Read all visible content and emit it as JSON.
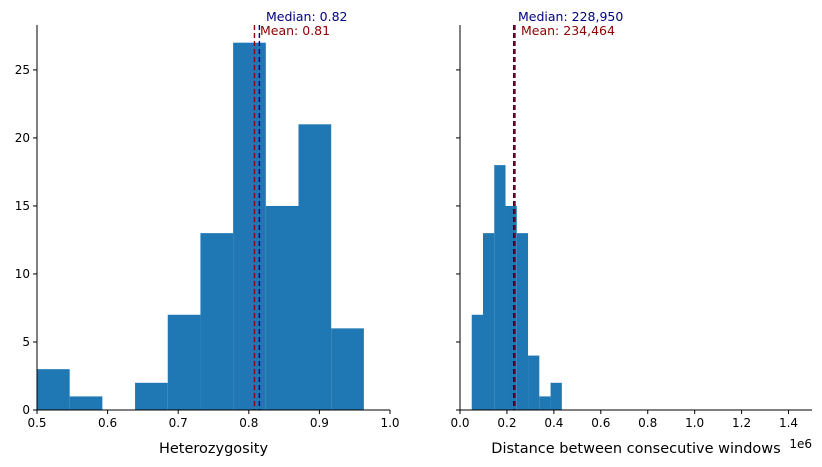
{
  "chart_data": [
    {
      "type": "histogram",
      "xlabel": "Heterozygosity",
      "ylabel": "",
      "xlim": [
        0.5,
        1.0
      ],
      "ylim": [
        0,
        28.3
      ],
      "xticks": [
        0.5,
        0.6,
        0.7,
        0.8,
        0.9,
        1.0
      ],
      "xtick_labels": [
        "0.5",
        "0.6",
        "0.7",
        "0.8",
        "0.9",
        "1.0"
      ],
      "yticks": [
        0,
        5,
        10,
        15,
        20,
        25
      ],
      "ytick_labels": [
        "0",
        "5",
        "10",
        "15",
        "20",
        "25"
      ],
      "bin_start": 0.5,
      "bin_width": 0.0463,
      "counts": [
        3,
        1,
        0,
        2,
        7,
        13,
        27,
        15,
        21,
        6
      ],
      "lines": [
        {
          "name": "median",
          "value": 0.815,
          "label": "Median: 0.82",
          "color": "#000080"
        },
        {
          "name": "mean",
          "value": 0.808,
          "label": "Mean: 0.81",
          "color": "#8b0000"
        }
      ]
    },
    {
      "type": "histogram",
      "xlabel": "Distance between consecutive windows",
      "ylabel": "",
      "offset_label": "1e6",
      "xlim": [
        0,
        1500000
      ],
      "ylim": [
        0,
        28.3
      ],
      "xticks": [
        0,
        200000,
        400000,
        600000,
        800000,
        1000000,
        1200000,
        1400000
      ],
      "xtick_labels": [
        "0.0",
        "0.2",
        "0.4",
        "0.6",
        "0.8",
        "1.0",
        "1.2",
        "1.4"
      ],
      "yticks": [
        0,
        5,
        10,
        15,
        20,
        25
      ],
      "bin_start": 50000,
      "bin_width": 48000,
      "counts": [
        7,
        13,
        18,
        15,
        13,
        4,
        1,
        2
      ],
      "lines": [
        {
          "name": "median",
          "value": 228950,
          "label": "Median: 228,950",
          "color": "#000080"
        },
        {
          "name": "mean",
          "value": 234464,
          "label": "Mean: 234,464",
          "color": "#8b0000"
        }
      ]
    }
  ],
  "colors": {
    "bar": "#1f77b4",
    "median": "#000080",
    "mean": "#8b0000",
    "axis": "#000000"
  }
}
